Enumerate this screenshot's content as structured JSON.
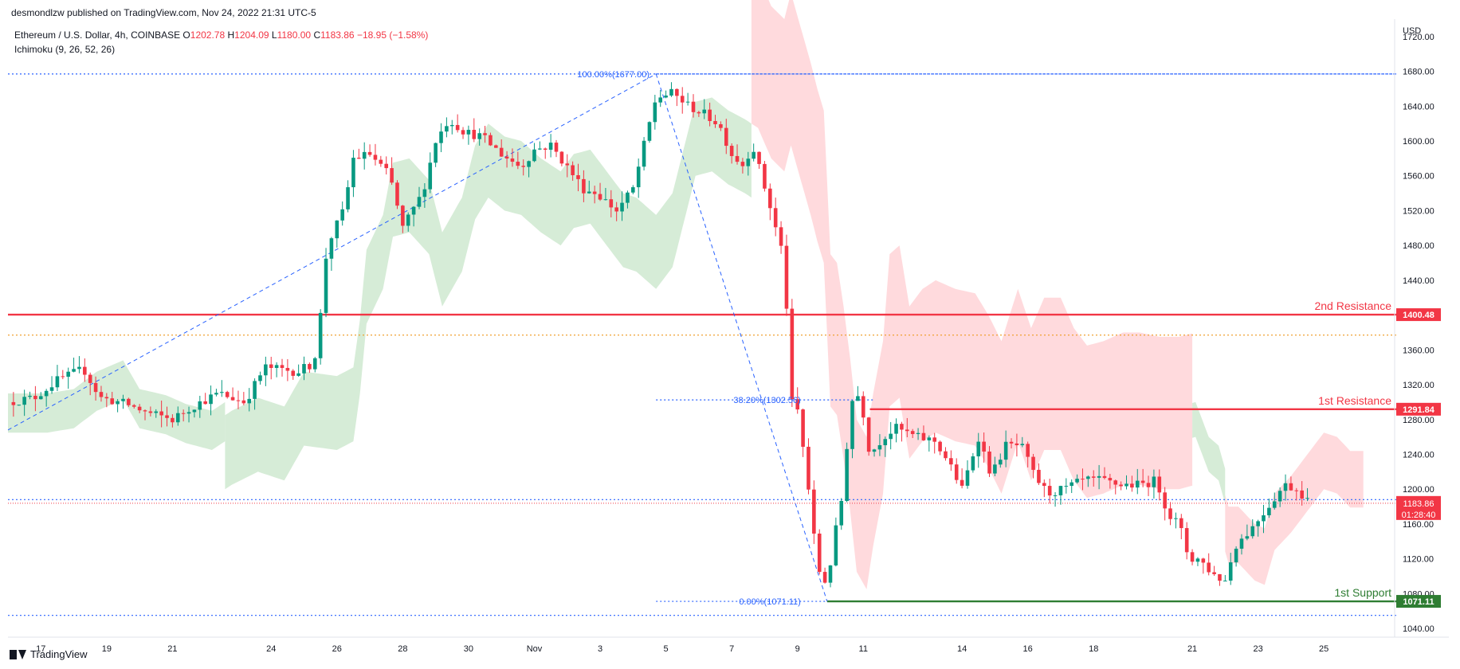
{
  "header": {
    "published": "desmondlzw published on TradingView.com, Nov 24, 2022 21:31 UTC-5"
  },
  "legend": {
    "symbol": "Ethereum / U.S. Dollar, 4h, COINBASE",
    "open_label": "O",
    "open": "1202.78",
    "high_label": "H",
    "high": "1204.09",
    "low_label": "L",
    "low": "1180.00",
    "close_label": "C",
    "close": "1183.86",
    "change": "−18.95 (−1.58%)",
    "indicator": "Ichimoku (9, 26, 52, 26)"
  },
  "footer": {
    "brand": "TradingView"
  },
  "colors": {
    "up": "#089981",
    "down": "#f23645",
    "cloud_bull": "#c8e6c9",
    "cloud_bear": "#ffcdd2",
    "fib": "#2962ff",
    "resistance": "#f23645",
    "support": "#2e7d32",
    "text_fib": "#2962ff"
  },
  "chart_data": {
    "type": "candlestick",
    "title": "Ethereum / U.S. Dollar, 4h, COINBASE",
    "currency": "USD",
    "ylim": [
      1030,
      1740
    ],
    "y_ticks": [
      1720,
      1680,
      1640,
      1600,
      1560,
      1520,
      1480,
      1440,
      1400,
      1360,
      1320,
      1280,
      1240,
      1200,
      1160,
      1120,
      1080,
      1040
    ],
    "x_ticks": [
      {
        "label": "17",
        "day": 17
      },
      {
        "label": "19",
        "day": 19
      },
      {
        "label": "21",
        "day": 21
      },
      {
        "label": "24",
        "day": 24
      },
      {
        "label": "26",
        "day": 26
      },
      {
        "label": "28",
        "day": 28
      },
      {
        "label": "30",
        "day": 30
      },
      {
        "label": "Nov",
        "day": 32
      },
      {
        "label": "3",
        "day": 34
      },
      {
        "label": "5",
        "day": 36
      },
      {
        "label": "7",
        "day": 38
      },
      {
        "label": "9",
        "day": 40
      },
      {
        "label": "11",
        "day": 42
      },
      {
        "label": "14",
        "day": 45
      },
      {
        "label": "16",
        "day": 47
      },
      {
        "label": "18",
        "day": 49
      },
      {
        "label": "21",
        "day": 52
      },
      {
        "label": "23",
        "day": 54
      },
      {
        "label": "25",
        "day": 56
      }
    ],
    "price_path": [
      [
        16.0,
        1300
      ],
      [
        16.8,
        1305
      ],
      [
        17.5,
        1325
      ],
      [
        18.3,
        1338
      ],
      [
        18.8,
        1305
      ],
      [
        19.6,
        1298
      ],
      [
        20.2,
        1288
      ],
      [
        21.0,
        1280
      ],
      [
        21.6,
        1295
      ],
      [
        22.4,
        1310
      ],
      [
        23.2,
        1300
      ],
      [
        23.8,
        1340
      ],
      [
        24.8,
        1335
      ],
      [
        25.3,
        1345
      ],
      [
        25.5,
        1400
      ],
      [
        25.7,
        1480
      ],
      [
        26.2,
        1520
      ],
      [
        26.5,
        1580
      ],
      [
        27.0,
        1585
      ],
      [
        27.6,
        1560
      ],
      [
        28.0,
        1500
      ],
      [
        28.6,
        1540
      ],
      [
        29.0,
        1600
      ],
      [
        29.4,
        1625
      ],
      [
        29.9,
        1610
      ],
      [
        30.4,
        1605
      ],
      [
        31.0,
        1585
      ],
      [
        31.6,
        1570
      ],
      [
        32.0,
        1590
      ],
      [
        32.5,
        1595
      ],
      [
        33.0,
        1570
      ],
      [
        33.5,
        1545
      ],
      [
        33.9,
        1540
      ],
      [
        34.5,
        1520
      ],
      [
        35.0,
        1545
      ],
      [
        35.3,
        1590
      ],
      [
        35.7,
        1650
      ],
      [
        36.2,
        1655
      ],
      [
        36.7,
        1640
      ],
      [
        37.2,
        1630
      ],
      [
        37.6,
        1620
      ],
      [
        38.0,
        1585
      ],
      [
        38.4,
        1570
      ],
      [
        38.6,
        1600
      ],
      [
        38.9,
        1560
      ],
      [
        39.2,
        1520
      ],
      [
        39.4,
        1490
      ],
      [
        39.6,
        1465
      ],
      [
        39.8,
        1300
      ],
      [
        40.0,
        1290
      ],
      [
        40.2,
        1240
      ],
      [
        40.4,
        1180
      ],
      [
        40.6,
        1110
      ],
      [
        40.9,
        1090
      ],
      [
        41.1,
        1140
      ],
      [
        41.4,
        1200
      ],
      [
        41.6,
        1300
      ],
      [
        41.9,
        1310
      ],
      [
        42.2,
        1240
      ],
      [
        42.6,
        1260
      ],
      [
        43.0,
        1270
      ],
      [
        43.6,
        1260
      ],
      [
        44.2,
        1255
      ],
      [
        44.6,
        1230
      ],
      [
        45.0,
        1200
      ],
      [
        45.5,
        1260
      ],
      [
        45.9,
        1215
      ],
      [
        46.3,
        1250
      ],
      [
        46.8,
        1250
      ],
      [
        47.2,
        1215
      ],
      [
        47.6,
        1195
      ],
      [
        48.1,
        1200
      ],
      [
        48.7,
        1210
      ],
      [
        49.2,
        1210
      ],
      [
        49.8,
        1205
      ],
      [
        50.4,
        1205
      ],
      [
        50.9,
        1210
      ],
      [
        51.3,
        1170
      ],
      [
        51.6,
        1160
      ],
      [
        51.9,
        1120
      ],
      [
        52.2,
        1120
      ],
      [
        52.7,
        1100
      ],
      [
        53.0,
        1095
      ],
      [
        53.3,
        1135
      ],
      [
        53.8,
        1155
      ],
      [
        54.2,
        1175
      ],
      [
        54.8,
        1205
      ],
      [
        55.2,
        1200
      ],
      [
        55.6,
        1183.86
      ]
    ],
    "ichimoku_cloud": [
      {
        "from": 16.0,
        "to": 22.6,
        "bias": "bear_then_bull"
      },
      {
        "from": 22.6,
        "to": 38.6,
        "bias": "bull"
      },
      {
        "from": 38.6,
        "to": 52.0,
        "bias": "bear"
      },
      {
        "from": 52.0,
        "to": 53.0,
        "bias": "bull"
      },
      {
        "from": 53.0,
        "to": 57.2,
        "bias": "bear"
      }
    ],
    "fibonacci": [
      {
        "label": "100.00%(1677.00)",
        "price": 1677.0
      },
      {
        "label": "38.20%(1302.56)",
        "price": 1302.56
      },
      {
        "label": "0.00%(1071.11)",
        "price": 1071.11
      }
    ],
    "levels": [
      {
        "name": "2nd Resistance",
        "price": 1400.48,
        "label": "1400.48",
        "kind": "resistance"
      },
      {
        "name": "1st Resistance",
        "price": 1291.84,
        "label": "1291.84",
        "kind": "resistance"
      },
      {
        "name": "1st Support",
        "price": 1071.11,
        "label": "1071.11",
        "kind": "support"
      }
    ],
    "last_price": {
      "price": 1183.86,
      "label": "1183.86",
      "countdown": "01:28:40"
    },
    "dotted_lines": [
      1677.0,
      1377.0,
      1188.0,
      1055.0
    ]
  }
}
